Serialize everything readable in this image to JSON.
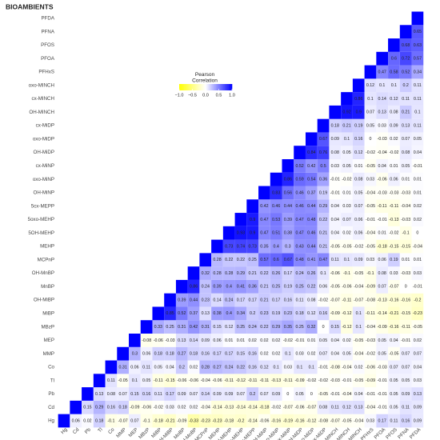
{
  "chart_data": {
    "type": "heatmap",
    "title": "BIOAMBIENTS",
    "legend_title": "Pearson\nCorrelation",
    "variables": [
      "Hg",
      "Cd",
      "Pb",
      "Tl",
      "Co",
      "MMP",
      "MEP",
      "MBzP",
      "MiBP",
      "OH-MiBP",
      "MnBP",
      "OH-MnBP",
      "MCPnP",
      "MEHP",
      "5OH-MEHP",
      "5oxo-MEHP",
      "5cx-MEPP",
      "OH-MiNP",
      "oxo-MiNP",
      "cx-MiNP",
      "OH-MiDP",
      "oxo-MiDP",
      "cx-MiDP",
      "OH-MINCH",
      "cx-MINCH",
      "oxo-MINCH",
      "PFHxS",
      "PFOA",
      "PFOS",
      "PFNA",
      "PFDA"
    ],
    "values": [
      [
        0.06,
        0.02,
        0.18,
        -0.1,
        -0.07,
        0.07,
        -0.1,
        -0.18,
        -0.21,
        -0.09,
        -0.33,
        -0.23,
        -0.23,
        -0.18,
        -0.2,
        -0.14,
        -0.06,
        -0.16,
        -0.19,
        -0.16,
        -0.12,
        -0.08,
        -0.07,
        -0.05,
        -0.04,
        0.03,
        0.17,
        0.11,
        0.16,
        0.09
      ],
      [
        0.15,
        0.29,
        0.16,
        0.18,
        -0.09,
        -0.06,
        -0.02,
        0.03,
        0.02,
        0.02,
        -0.04,
        -0.14,
        -0.13,
        -0.14,
        -0.14,
        -0.18,
        -0.02,
        -0.07,
        -0.06,
        -0.07,
        0.08,
        0.11,
        0.12,
        0.13,
        -0.04,
        -0.01,
        0.05,
        0.11,
        0.09
      ],
      [
        0.13,
        0.08,
        0.07,
        0.15,
        0.16,
        0.11,
        0.17,
        0.09,
        0.07,
        0.14,
        0.09,
        0.09,
        0.07,
        0.2,
        0.07,
        0.09,
        0,
        0.05,
        0,
        -0.05,
        -0.01,
        -0.04,
        0.04,
        -0.01,
        -0.01,
        0.05,
        0.09,
        0.13
      ],
      [
        0.11,
        -0.05,
        0.1,
        0.05,
        -0.11,
        -0.15,
        -0.06,
        -0.06,
        -0.04,
        -0.06,
        -0.11,
        -0.12,
        -0.11,
        -0.11,
        -0.13,
        -0.11,
        -0.09,
        -0.02,
        -0.02,
        -0.03,
        -0.01,
        -0.05,
        -0.09,
        -0.01,
        0.05,
        0.05,
        0.03
      ],
      [
        0.31,
        0.06,
        0.11,
        0.05,
        0.04,
        0.2,
        0.02,
        0.28,
        0.27,
        0.24,
        0.22,
        0.16,
        0.12,
        0.1,
        0.03,
        0.1,
        0.1,
        -0.01,
        -0.08,
        -0.04,
        0.02,
        -0.06,
        -0.03,
        0.07,
        0.07,
        0.04
      ],
      [
        0.3,
        0.06,
        0.18,
        0.18,
        0.27,
        0.18,
        0.16,
        0.17,
        0.17,
        0.15,
        0.16,
        0.02,
        0.02,
        0.1,
        0.03,
        0.02,
        0.07,
        0.04,
        0.05,
        -0.04,
        -0.02,
        0.05,
        -0.05,
        0.07,
        0.07
      ],
      [
        -0.08,
        -0.06,
        -0.03,
        0.13,
        0.14,
        0.09,
        0.06,
        0.01,
        0.01,
        0.02,
        0.02,
        0.02,
        -0.02,
        -0.01,
        0.01,
        0.05,
        0.04,
        0.02,
        -0.05,
        -0.03,
        0.05,
        0.04,
        -0.01,
        0.02
      ],
      [
        0.33,
        0.25,
        0.31,
        0.42,
        0.31,
        0.15,
        0.12,
        0.25,
        0.24,
        0.22,
        0.29,
        0.35,
        0.25,
        0.32,
        0,
        0.15,
        -0.12,
        0.1,
        -0.04,
        -0.09,
        -0.16,
        -0.11,
        -0.05
      ],
      [
        0.85,
        0.52,
        0.37,
        0.13,
        0.38,
        0.4,
        0.34,
        0.2,
        0.23,
        0.19,
        0.23,
        0.18,
        0.12,
        0.16,
        -0.09,
        -0.12,
        0.1,
        -0.11,
        -0.14,
        -0.21,
        -0.15,
        -0.23
      ],
      [
        0.39,
        0.44,
        0.23,
        0.14,
        0.24,
        0.17,
        0.17,
        0.21,
        0.17,
        0.16,
        0.11,
        0.08,
        -0.02,
        -0.07,
        -0.11,
        -0.07,
        -0.08,
        -0.13,
        -0.16,
        -0.16,
        -0.2
      ],
      [
        0.86,
        0.24,
        0.39,
        0.4,
        0.41,
        0.36,
        0.21,
        0.25,
        0.19,
        0.25,
        0.22,
        0.06,
        -0.05,
        -0.06,
        -0.04,
        -0.09,
        0.07,
        -0.07,
        0,
        -0.01
      ],
      [
        0.32,
        0.28,
        0.28,
        0.29,
        0.21,
        0.22,
        0.26,
        0.17,
        0.24,
        0.26,
        0.1,
        -0.06,
        -0.1,
        -0.05,
        -0.1,
        0.08,
        0.03,
        -0.03,
        0.03
      ],
      [
        0.28,
        0.22,
        0.22,
        0.25,
        0.57,
        0.6,
        0.67,
        0.48,
        0.41,
        0.47,
        0.11,
        0.1,
        0.09,
        0.03,
        0.06,
        0.19,
        0.01,
        0.01
      ],
      [
        0.73,
        0.74,
        0.73,
        0.35,
        0.4,
        0.3,
        0.43,
        0.44,
        0.21,
        -0.05,
        -0.05,
        -0.02,
        -0.05,
        -0.18,
        -0.15,
        -0.15,
        -0.04
      ],
      [
        0.93,
        0.9,
        0.47,
        0.51,
        0.38,
        0.47,
        0.46,
        0.21,
        0.04,
        0.02,
        0.06,
        -0.04,
        0.01,
        -0.02,
        -0.1,
        0
      ],
      [
        0.9,
        0.47,
        0.53,
        0.39,
        0.47,
        0.48,
        0.22,
        0.04,
        0.07,
        0.06,
        -0.01,
        -0.01,
        -0.13,
        -0.03,
        0.02
      ],
      [
        0.42,
        0.46,
        0.44,
        0.46,
        0.44,
        0.29,
        0.04,
        0.03,
        0.07,
        -0.05,
        -0.11,
        -0.11,
        -0.04,
        0.02
      ],
      [
        0.83,
        0.56,
        0.46,
        0.37,
        0.19,
        -0.01,
        0.01,
        0.05,
        -0.04,
        -0.03,
        -0.03,
        -0.03,
        0.01
      ],
      [
        0.86,
        0.59,
        0.54,
        0.36,
        -0.01,
        -0.02,
        0.08,
        0.03,
        -0.06,
        0.06,
        0.01,
        0.01
      ],
      [
        0.52,
        0.42,
        0.5,
        0.03,
        0.05,
        0.01,
        -0.05,
        0.04,
        0.01,
        0.05,
        -0.01
      ],
      [
        0.84,
        0.76,
        0.08,
        0.05,
        0.12,
        -0.02,
        -0.04,
        -0.02,
        0.08,
        0.04
      ],
      [
        0.67,
        0.09,
        0.1,
        0.16,
        0,
        -0.03,
        0.02,
        0.07,
        0.05
      ],
      [
        0.18,
        0.21,
        0.19,
        0.05,
        0.03,
        0.09,
        0.13,
        0.11
      ],
      [
        0.92,
        0.9,
        0.07,
        0.13,
        0.08,
        0.21,
        0.1
      ],
      [
        0.86,
        0.1,
        0.14,
        0.12,
        0.11,
        0.11
      ],
      [
        0.12,
        0.1,
        0.1,
        0.2,
        0.11
      ],
      [
        0.47,
        0.58,
        0.52,
        0.34
      ],
      [
        0.6,
        0.72,
        0.57
      ],
      [
        0.68,
        0.63
      ],
      [
        0.65
      ],
      []
    ],
    "zlim": [
      -1,
      1
    ],
    "zticks": [
      {
        "value": -1,
        "label": "−1.0"
      },
      {
        "value": -0.5,
        "label": "−0.5"
      },
      {
        "value": 0,
        "label": "0.0"
      },
      {
        "value": 0.5,
        "label": "0.5"
      },
      {
        "value": 1,
        "label": "1.0"
      }
    ],
    "low_color": "#ffff00",
    "mid_color": "#ffffff",
    "high_color": "#0000ff"
  }
}
